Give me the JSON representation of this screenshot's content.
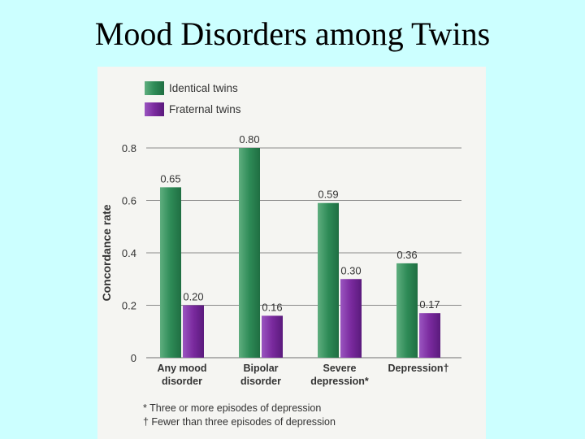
{
  "slide": {
    "title": "Mood Disorders among Twins"
  },
  "chart_data": {
    "type": "bar",
    "title": "",
    "xlabel": "",
    "ylabel": "Concordance rate",
    "ylim": [
      0,
      0.8
    ],
    "yticks": [
      "0",
      "0.2",
      "0.4",
      "0.6",
      "0.8"
    ],
    "grid": true,
    "legend_position": "top-left",
    "categories": [
      [
        "Any mood",
        "disorder"
      ],
      [
        "Bipolar",
        "disorder"
      ],
      [
        "Severe",
        "depression*"
      ],
      [
        "Depression†"
      ]
    ],
    "series": [
      {
        "name": "Identical twins",
        "color": "#2e8b57",
        "values": [
          0.65,
          0.8,
          0.59,
          0.36
        ],
        "labels": [
          "0.65",
          "0.80",
          "0.59",
          "0.36"
        ]
      },
      {
        "name": "Fraternal twins",
        "color": "#7a2a9e",
        "values": [
          0.2,
          0.16,
          0.3,
          0.17
        ],
        "labels": [
          "0.20",
          "0.16",
          "0.30",
          "0.17"
        ]
      }
    ],
    "footnotes": [
      "* Three or more episodes of depression",
      "† Fewer than three episodes of depression"
    ]
  }
}
